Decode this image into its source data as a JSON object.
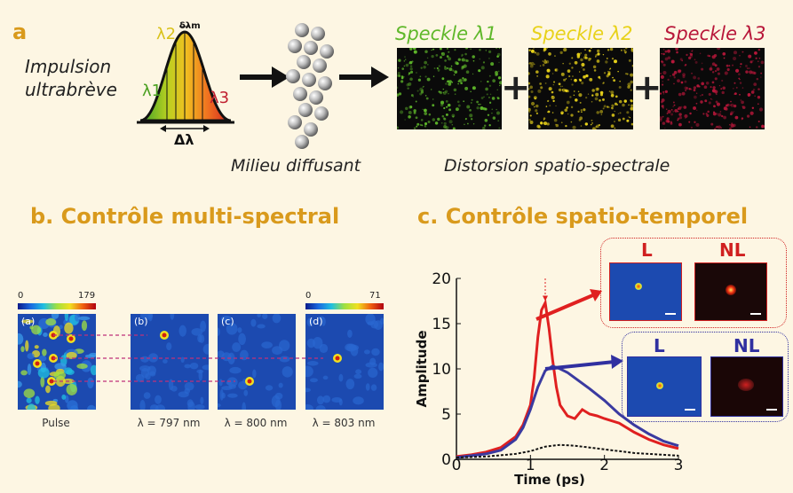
{
  "panel_a": {
    "letter": "a",
    "pulse_label_line1": "Impulsion",
    "pulse_label_line2": "ultrabrève",
    "lambda1": "λ1",
    "lambda2": "λ2",
    "lambda3": "λ3",
    "delta_lambda_m": "δλm",
    "delta_lambda": "Δλ",
    "medium_label": "Milieu diffusant",
    "distortion_label": "Distorsion spatio-spectrale",
    "speckles": [
      {
        "title": "Speckle λ1",
        "color": "#5fb82a"
      },
      {
        "title": "Speckle λ2",
        "color": "#e8d21a"
      },
      {
        "title": "Speckle λ3",
        "color": "#b8173a"
      }
    ],
    "plus": "+"
  },
  "panel_b": {
    "heading": "b. Contrôle multi-spectral",
    "colorbar_left": {
      "min": "0",
      "max": "179"
    },
    "colorbar_right": {
      "min": "0",
      "max": "71"
    },
    "tiles": [
      {
        "tag": "(a)",
        "label": "Pulse"
      },
      {
        "tag": "(b)",
        "label": "λ = 797 nm"
      },
      {
        "tag": "(c)",
        "label": "λ = 800 nm"
      },
      {
        "tag": "(d)",
        "label": "λ = 803 nm"
      }
    ]
  },
  "panel_c": {
    "heading": "c. Contrôle spatio-temporel",
    "insets": {
      "linear": "L",
      "nonlinear": "NL"
    }
  },
  "chart_data": {
    "type": "line",
    "title": "",
    "xlabel": "Time (ps)",
    "ylabel": "Amplitude",
    "xlim": [
      0,
      3
    ],
    "ylim": [
      0,
      20
    ],
    "x_ticks": [
      0,
      1,
      2,
      3
    ],
    "y_ticks": [
      0,
      5,
      10,
      15,
      20
    ],
    "series": [
      {
        "color": "#e02020",
        "x": [
          0,
          0.2,
          0.4,
          0.6,
          0.8,
          0.9,
          1.0,
          1.05,
          1.1,
          1.15,
          1.2,
          1.25,
          1.3,
          1.35,
          1.4,
          1.5,
          1.6,
          1.7,
          1.8,
          1.9,
          2.0,
          2.2,
          2.4,
          2.6,
          2.8,
          3.0
        ],
        "y": [
          0.3,
          0.5,
          0.8,
          1.3,
          2.5,
          3.8,
          6.0,
          9.0,
          13.5,
          16.5,
          17.3,
          14.5,
          11.0,
          8.0,
          6.0,
          4.8,
          4.5,
          5.5,
          5.0,
          4.8,
          4.5,
          4.0,
          3.0,
          2.2,
          1.6,
          1.2
        ]
      },
      {
        "color": "#3a3aa0",
        "x": [
          0,
          0.2,
          0.4,
          0.6,
          0.8,
          0.9,
          1.0,
          1.1,
          1.2,
          1.3,
          1.4,
          1.5,
          1.6,
          1.8,
          2.0,
          2.2,
          2.4,
          2.6,
          2.8,
          3.0
        ],
        "y": [
          0.2,
          0.4,
          0.6,
          1.0,
          2.2,
          3.5,
          5.5,
          8.0,
          9.8,
          10.3,
          10.0,
          9.6,
          9.0,
          7.8,
          6.5,
          5.0,
          3.8,
          2.8,
          2.0,
          1.5
        ]
      },
      {
        "color": "#111111",
        "x": [
          0,
          0.4,
          0.8,
          1.0,
          1.2,
          1.4,
          1.6,
          1.8,
          2.0,
          2.2,
          2.4,
          2.6,
          2.8,
          3.0
        ],
        "y": [
          0.2,
          0.3,
          0.6,
          0.9,
          1.4,
          1.6,
          1.5,
          1.3,
          1.1,
          0.9,
          0.7,
          0.6,
          0.5,
          0.4
        ]
      }
    ]
  }
}
